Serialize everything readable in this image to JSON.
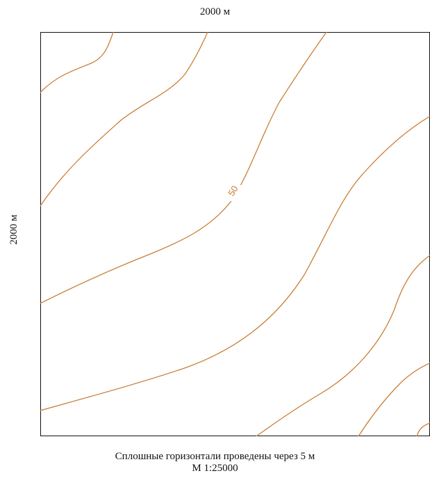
{
  "map": {
    "top_label": "2000 м",
    "side_label": "2000 м",
    "contour_label": "50",
    "note_line_1": "Сплошные горизонтали проведены через 5 м",
    "note_line_2": "М 1:25000",
    "colors": {
      "contour": "#c97a2f",
      "frame": "#111111",
      "background": "#ffffff"
    }
  }
}
